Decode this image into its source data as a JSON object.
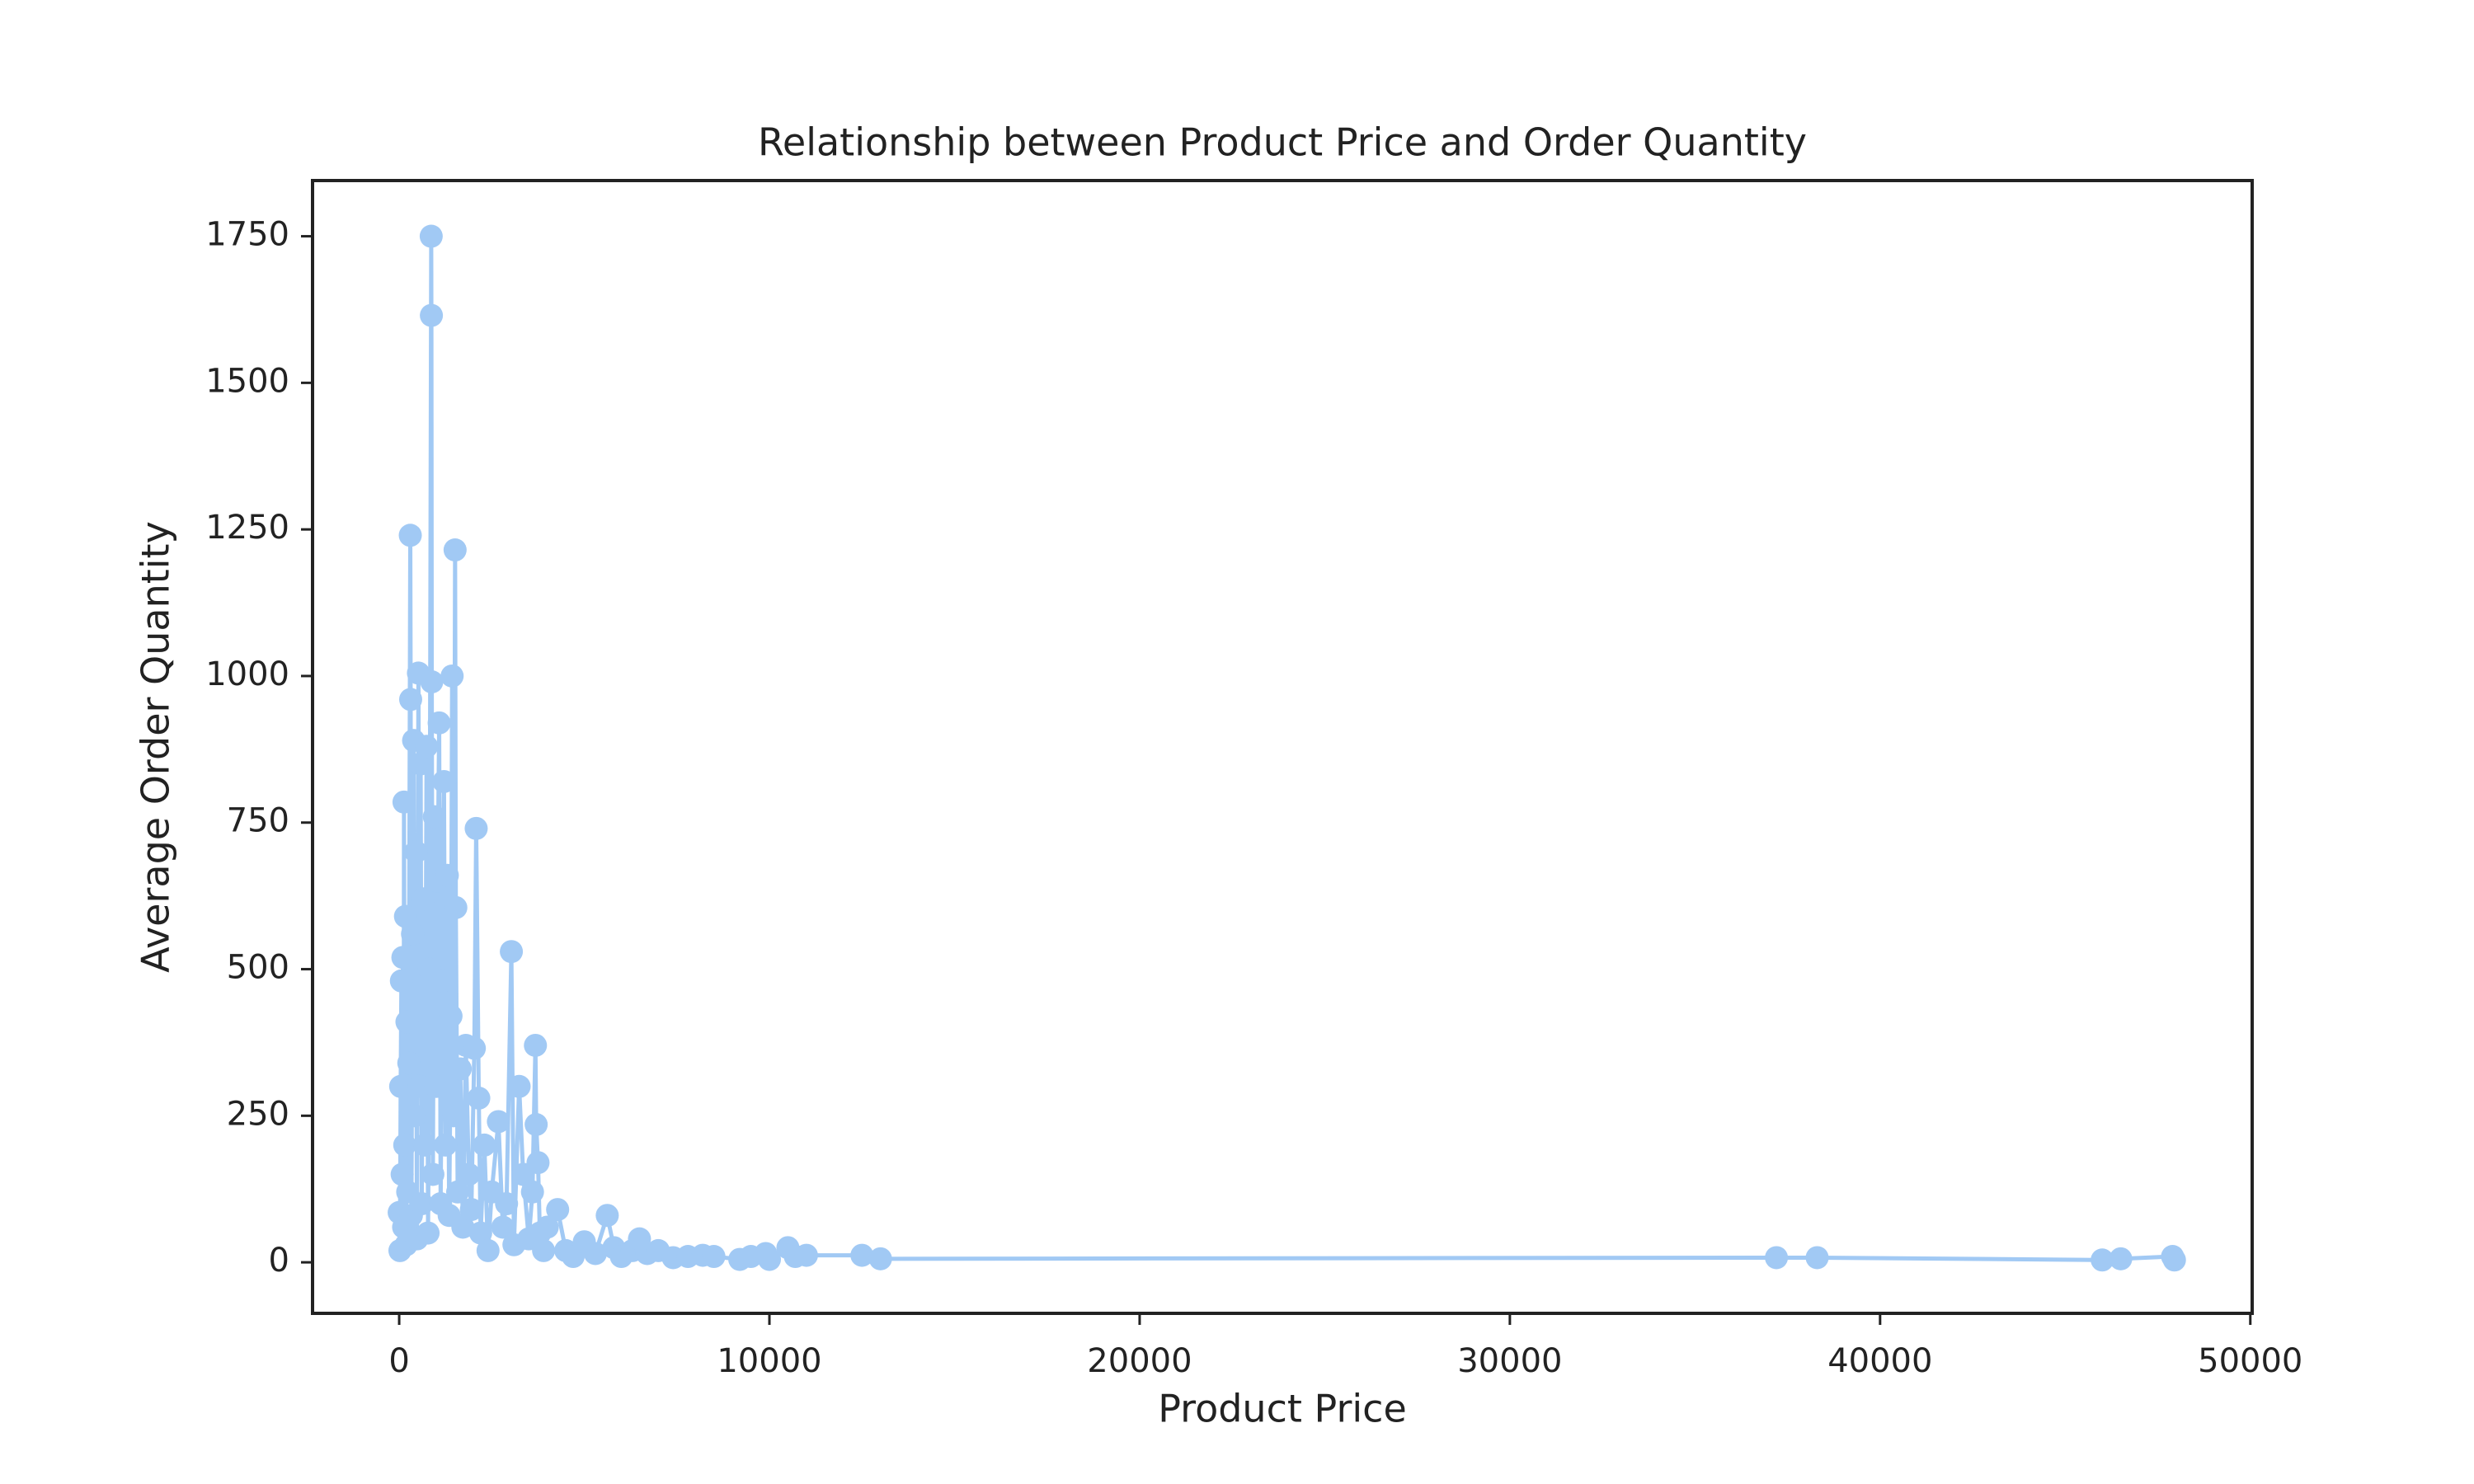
{
  "chart_data": {
    "type": "line",
    "title": "Relationship between Product Price and Order Quantity",
    "x_label": "Product Price",
    "y_label": "Average Order Quantity",
    "color": "#a1c9f4",
    "markers": true,
    "xlim": [
      -2340,
      50050
    ],
    "ylim": [
      -87,
      1845
    ],
    "xticks": [
      0,
      10000,
      20000,
      30000,
      40000,
      50000
    ],
    "yticks": [
      0,
      250,
      500,
      750,
      1000,
      1250,
      1500,
      1750
    ],
    "series": [
      {
        "name": "Average Order Quantity",
        "color": "#a1c9f4",
        "x": [
          0,
          20,
          40,
          60,
          80,
          100,
          120,
          130,
          150,
          170,
          190,
          210,
          230,
          260,
          300,
          310,
          330,
          360,
          390,
          420,
          450,
          480,
          520,
          550,
          580,
          610,
          650,
          700,
          740,
          780,
          820,
          865,
          870,
          880,
          910,
          950,
          1000,
          1040,
          1080,
          1120,
          1160,
          1210,
          1250,
          1300,
          1350,
          1400,
          1430,
          1470,
          1510,
          1530,
          1580,
          1650,
          1720,
          1800,
          1880,
          1950,
          2030,
          2080,
          2150,
          2200,
          2300,
          2400,
          2500,
          2680,
          2800,
          2900,
          3030,
          3100,
          3240,
          3350,
          3500,
          3600,
          3680,
          3700,
          3750,
          3800,
          3900,
          4000,
          4280,
          4500,
          4700,
          5000,
          5300,
          5620,
          5800,
          6000,
          6300,
          6490,
          6700,
          7000,
          7400,
          7800,
          8200,
          8500,
          9200,
          9500,
          9900,
          10000,
          10500,
          10700,
          11000,
          12500,
          13000,
          37200,
          38300,
          46000,
          46500,
          47900,
          47950
        ],
        "values": [
          85,
          20,
          300,
          480,
          150,
          520,
          60,
          785,
          200,
          590,
          30,
          410,
          120,
          340,
          1240,
          960,
          80,
          560,
          890,
          250,
          700,
          40,
          1005,
          300,
          850,
          100,
          620,
          200,
          880,
          50,
          500,
          1750,
          1615,
          990,
          150,
          760,
          300,
          650,
          920,
          100,
          480,
          820,
          200,
          660,
          80,
          420,
          1000,
          250,
          1215,
          605,
          120,
          330,
          60,
          370,
          150,
          90,
          365,
          740,
          280,
          50,
          200,
          20,
          120,
          240,
          60,
          100,
          530,
          30,
          300,
          150,
          40,
          120,
          370,
          235,
          170,
          50,
          20,
          60,
          90,
          20,
          10,
          35,
          15,
          80,
          25,
          10,
          20,
          40,
          15,
          20,
          8,
          10,
          12,
          10,
          5,
          10,
          15,
          5,
          25,
          10,
          12,
          12,
          6,
          8,
          8,
          4,
          6,
          10,
          4
        ]
      }
    ]
  }
}
